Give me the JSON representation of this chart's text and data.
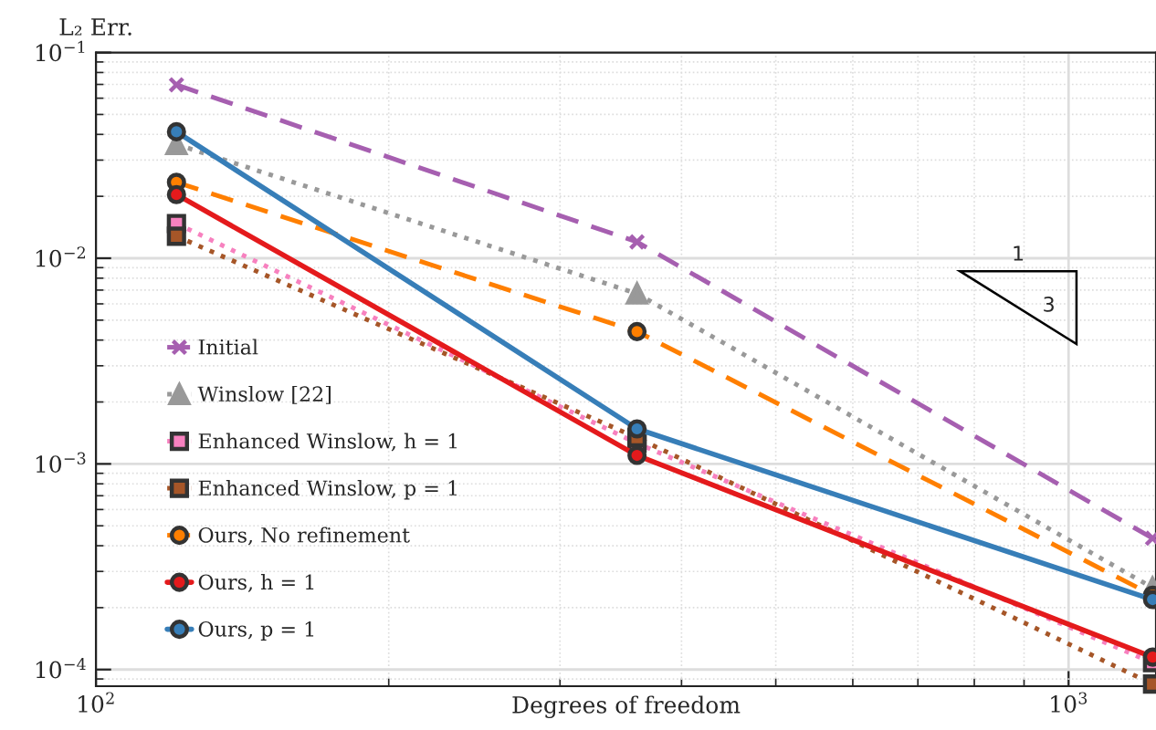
{
  "chart_data": {
    "type": "line",
    "xlabel": "Degrees of freedom",
    "ylabel": "L₂ Err.",
    "log": "xy",
    "grid": true,
    "legend": "left",
    "xlim": [
      100,
      1230
    ],
    "xticks": [
      {
        "value": 100,
        "label": "10$^{2}$"
      },
      {
        "value": 1000,
        "label": "10$^{3}$"
      }
    ],
    "ylim": [
      8.3e-05,
      0.1
    ],
    "yticks": [
      {
        "value": 0.0001,
        "label": "10$^{−4}$"
      },
      {
        "value": 0.001,
        "label": "10$^{−3}$"
      },
      {
        "value": 0.01,
        "label": "10$^{−2}$"
      },
      {
        "value": 0.1,
        "label": "10$^{−1}$"
      }
    ],
    "x": [
      121,
      360,
      1220
    ],
    "series": [
      {
        "name": "Initial",
        "color": "#a65fb0",
        "marker": "cross",
        "line_style": "dashed",
        "values": [
          0.0697,
          0.012,
          0.000435
        ]
      },
      {
        "name": "Winslow [22]",
        "color": "#999999",
        "marker": "triangle",
        "line_style": "dotted",
        "values": [
          0.0358,
          0.00673,
          0.00025
        ]
      },
      {
        "name": "Enhanced Winslow, h = 1",
        "color": "#f781bf",
        "marker": "square",
        "line_style": "dotted",
        "values": [
          0.01475,
          0.00126,
          0.000108
        ]
      },
      {
        "name": "Enhanced Winslow, p = 1",
        "color": "#a65628",
        "marker": "square",
        "line_style": "dotted",
        "values": [
          0.0128,
          0.00134,
          8.5e-05
        ]
      },
      {
        "name": "Ours, No refinement",
        "color": "#ff7f00",
        "marker": "circle",
        "line_style": "dashed",
        "values": [
          0.0234,
          0.0044,
          0.00023
        ]
      },
      {
        "name": "Ours, h = 1",
        "color": "#e41a1c",
        "marker": "circle",
        "line_style": "solid",
        "values": [
          0.0204,
          0.0011,
          0.000115
        ]
      },
      {
        "name": "Ours, p = 1",
        "color": "#377eb8",
        "marker": "circle",
        "line_style": "solid",
        "values": [
          0.0412,
          0.00148,
          0.000219
        ]
      }
    ],
    "annotations": [
      "1",
      "3"
    ]
  }
}
